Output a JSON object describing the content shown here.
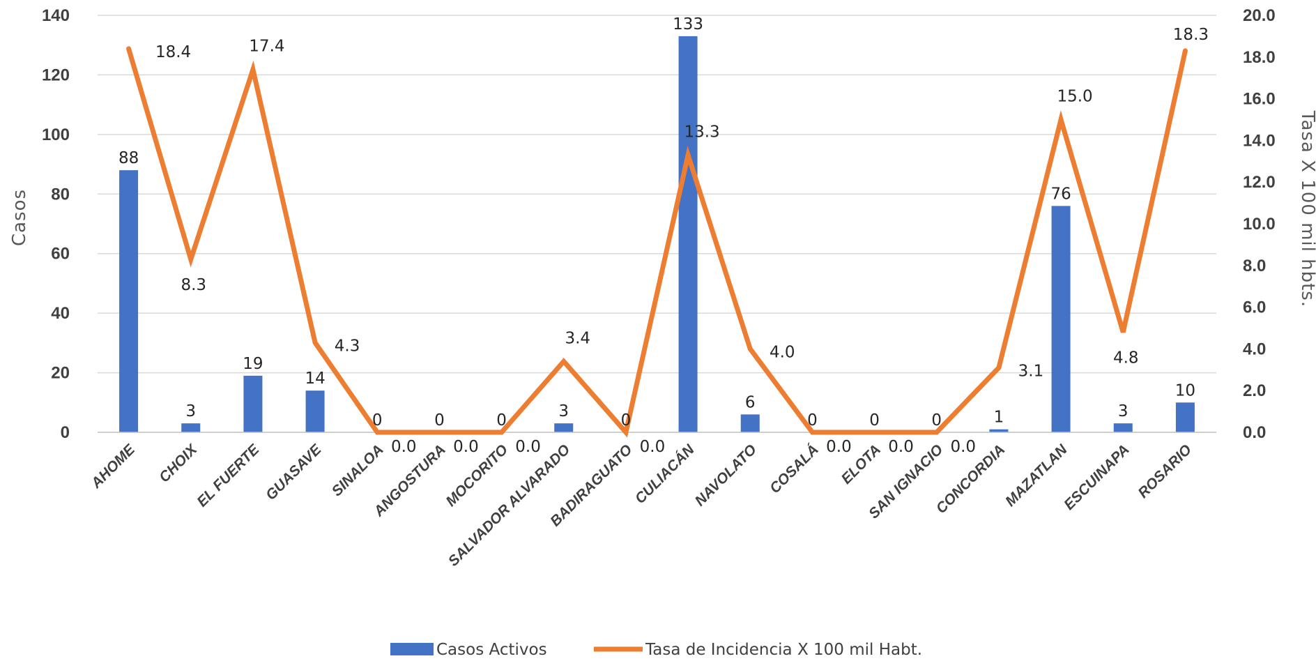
{
  "chart_data": {
    "type": "bar",
    "categories": [
      "AHOME",
      "CHOIX",
      "EL FUERTE",
      "GUASAVE",
      "SINALOA",
      "ANGOSTURA",
      "MOCORITO",
      "SALVADOR ALVARADO",
      "BADIRAGUATO",
      "CULIACÁN",
      "NAVOLATO",
      "COSALÁ",
      "ELOTA",
      "SAN IGNACIO",
      "CONCORDIA",
      "MAZATLAN",
      "ESCUINAPA",
      "ROSARIO"
    ],
    "series": [
      {
        "name": "Casos Activos",
        "type": "bar",
        "axis": "left",
        "color": "#4472C4",
        "values": [
          88,
          3,
          19,
          14,
          0,
          0,
          0,
          3,
          0,
          133,
          6,
          0,
          0,
          0,
          1,
          76,
          3,
          10
        ],
        "labels": [
          "88",
          "3",
          "19",
          "14",
          "0",
          "0",
          "0",
          "3",
          "0",
          "133",
          "6",
          "0",
          "0",
          "0",
          "1",
          "76",
          "3",
          "10"
        ]
      },
      {
        "name": "Tasa de Incidencia X 100 mil Habt.",
        "type": "line",
        "axis": "right",
        "color": "#ED7D31",
        "values": [
          18.4,
          8.3,
          17.4,
          4.3,
          0.0,
          0.0,
          0.0,
          3.4,
          0.0,
          13.3,
          4.0,
          0.0,
          0.0,
          0.0,
          3.1,
          15.0,
          4.8,
          18.3
        ],
        "labels": [
          "18.4",
          "8.3",
          "17.4",
          "4.3",
          "0.0",
          "0.0",
          "0.0",
          "3.4",
          "0.0",
          "13.3",
          "4.0",
          "0.0",
          "0.0",
          "0.0",
          "3.1",
          "15.0",
          "4.8",
          "18.3"
        ]
      }
    ],
    "ylabel": "Casos",
    "y2label": "Tasa X 100 mil hbts.",
    "ylim": [
      0,
      140
    ],
    "y2lim": [
      0,
      20
    ],
    "yticks": [
      "0",
      "20",
      "40",
      "60",
      "80",
      "100",
      "120",
      "140"
    ],
    "y2ticks": [
      "0.0",
      "2.0",
      "4.0",
      "6.0",
      "8.0",
      "10.0",
      "12.0",
      "14.0",
      "16.0",
      "18.0",
      "20.0"
    ],
    "grid": true,
    "legend_position": "bottom"
  }
}
